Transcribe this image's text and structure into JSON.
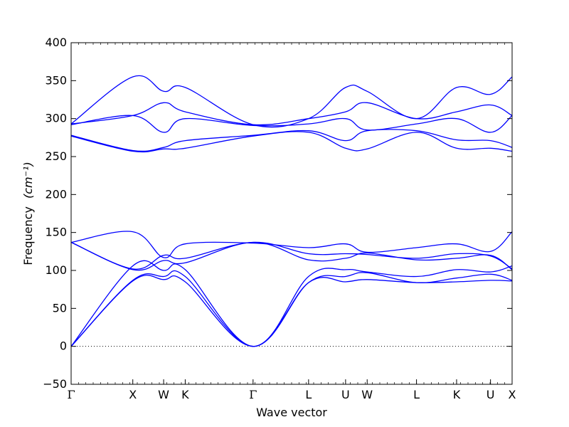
{
  "chart_data": {
    "type": "line",
    "xlabel": "Wave vector",
    "ylabel": "Frequency",
    "ylabel_unit": "(cm⁻¹)",
    "ylim": [
      -50,
      400
    ],
    "y_ticks": [
      "−50",
      "0",
      "50",
      "100",
      "150",
      "200",
      "250",
      "300",
      "350",
      "400"
    ],
    "y_tick_values": [
      -50,
      0,
      50,
      100,
      150,
      200,
      250,
      300,
      350,
      400
    ],
    "xlim": [
      0,
      7.15
    ],
    "x_ticks": [
      {
        "label": "Γ",
        "x": 0
      },
      {
        "label": "X",
        "x": 1
      },
      {
        "label": "W",
        "x": 1.5
      },
      {
        "label": "K",
        "x": 1.85
      },
      {
        "label": "Γ",
        "x": 2.95
      },
      {
        "label": "L",
        "x": 3.85
      },
      {
        "label": "U",
        "x": 4.45
      },
      {
        "label": "W",
        "x": 4.8
      },
      {
        "label": "L",
        "x": 5.6
      },
      {
        "label": "K",
        "x": 6.25
      },
      {
        "label": "U",
        "x": 6.8
      },
      {
        "label": "X",
        "x": 7.15
      }
    ],
    "zero_line": true,
    "line_color": "#0000ff",
    "series": [
      {
        "x": [
          0,
          1,
          1.5,
          1.85,
          2.95,
          3.85,
          4.45,
          4.8,
          5.6,
          6.25,
          6.8,
          7.15
        ],
        "values": [
          0,
          86,
          88,
          85,
          0,
          84,
          85,
          88,
          84,
          85,
          87,
          86
        ]
      },
      {
        "x": [
          0,
          1,
          1.5,
          1.85,
          2.95,
          3.85,
          4.45,
          4.8,
          5.6,
          6.25,
          6.8,
          7.15
        ],
        "values": [
          0,
          87,
          92,
          92,
          0,
          84,
          92,
          97,
          84,
          90,
          95,
          87
        ]
      },
      {
        "x": [
          0,
          1,
          1.5,
          1.85,
          2.95,
          3.85,
          4.45,
          4.8,
          5.6,
          6.25,
          6.8,
          7.15
        ],
        "values": [
          0,
          106,
          100,
          101,
          0,
          92,
          101,
          98,
          92,
          101,
          98,
          106
        ]
      },
      {
        "x": [
          0,
          1,
          1.5,
          1.85,
          2.95,
          3.85,
          4.45,
          4.8,
          5.6,
          6.25,
          6.8,
          7.15
        ],
        "values": [
          137,
          101,
          113,
          110,
          137,
          114,
          116,
          123,
          114,
          116,
          120,
          101
        ]
      },
      {
        "x": [
          0,
          1,
          1.5,
          1.85,
          2.95,
          3.85,
          4.45,
          4.8,
          5.6,
          6.25,
          6.8,
          7.15
        ],
        "values": [
          137,
          102,
          120,
          116,
          137,
          122,
          122,
          121,
          116,
          122,
          119,
          102
        ]
      },
      {
        "x": [
          0,
          1,
          1.5,
          1.85,
          2.95,
          3.85,
          4.45,
          4.8,
          5.6,
          6.25,
          6.8,
          7.15
        ],
        "values": [
          137,
          151,
          117,
          135,
          136,
          130,
          135,
          124,
          130,
          135,
          125,
          151
        ]
      },
      {
        "x": [
          0,
          1,
          1.5,
          1.85,
          2.95,
          3.85,
          4.45,
          4.8,
          5.6,
          6.25,
          6.8,
          7.15
        ],
        "values": [
          277,
          257,
          260,
          261,
          277,
          282,
          261,
          260,
          282,
          261,
          261,
          257
        ]
      },
      {
        "x": [
          0,
          1,
          1.5,
          1.85,
          2.95,
          3.85,
          4.45,
          4.8,
          5.6,
          6.25,
          6.8,
          7.15
        ],
        "values": [
          278,
          258,
          262,
          271,
          278,
          284,
          271,
          284,
          284,
          272,
          271,
          262
        ]
      },
      {
        "x": [
          0,
          1,
          1.5,
          1.85,
          2.95,
          3.85,
          4.45,
          4.8,
          5.6,
          6.25,
          6.8,
          7.15
        ],
        "values": [
          292,
          304,
          282,
          300,
          291,
          293,
          300,
          285,
          293,
          300,
          282,
          304
        ]
      },
      {
        "x": [
          0,
          1,
          1.5,
          1.85,
          2.95,
          3.85,
          4.45,
          4.8,
          5.6,
          6.25,
          6.8,
          7.15
        ],
        "values": [
          293,
          304,
          321,
          309,
          292,
          300,
          309,
          321,
          300,
          309,
          318,
          304
        ]
      },
      {
        "x": [
          0,
          1,
          1.5,
          1.85,
          2.95,
          3.85,
          4.45,
          4.8,
          5.6,
          6.25,
          6.8,
          7.15
        ],
        "values": [
          293,
          355,
          336,
          341,
          292,
          300,
          341,
          336,
          300,
          341,
          332,
          355
        ]
      }
    ]
  }
}
